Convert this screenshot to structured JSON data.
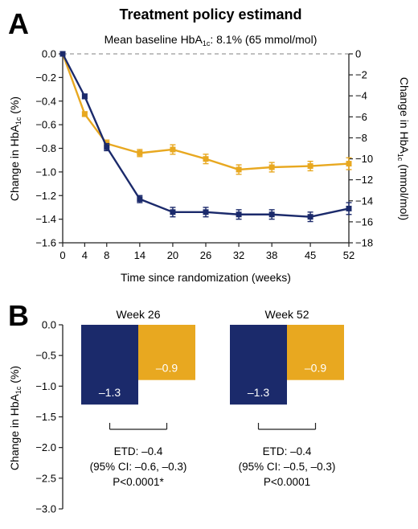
{
  "colors": {
    "navy": "#1b2a6b",
    "gold": "#e8a820",
    "axis": "#222222",
    "reference": "#9a9a9a"
  },
  "panel_a": {
    "letter": "A",
    "title": "Treatment policy estimand",
    "subtitle_prefix": "Mean baseline HbA",
    "subtitle_sub": "1c",
    "subtitle_suffix": ": 8.1% (65 mmol/mol)",
    "ylabel_prefix": "Change in HbA",
    "ylabel_sub": "1c",
    "ylabel_suffix": " (%)",
    "y2label_prefix": "Change in HbA",
    "y2label_sub": "1c",
    "y2label_suffix": " (mmol/mol)",
    "xlabel": "Time since randomization (weeks)"
  },
  "panel_b": {
    "letter": "B",
    "ylabel_prefix": "Change in HbA",
    "ylabel_sub": "1c",
    "ylabel_suffix": " (%)"
  },
  "chart_data": [
    {
      "type": "line",
      "x": [
        0,
        4,
        8,
        14,
        20,
        26,
        32,
        38,
        45,
        52
      ],
      "x_tick_labels": [
        "0",
        "4",
        "8",
        "14",
        "20",
        "26",
        "32",
        "38",
        "45",
        "52"
      ],
      "xlim": [
        0,
        52
      ],
      "ylim": [
        -1.6,
        0.0
      ],
      "y_ticks": [
        "0.0",
        "-0.2",
        "-0.4",
        "-0.6",
        "-0.8",
        "-1.0",
        "-1.2",
        "-1.4",
        "-1.6"
      ],
      "y2lim": [
        -18,
        0
      ],
      "y2_ticks": [
        "0",
        "-2",
        "-4",
        "-6",
        "-8",
        "-10",
        "-12",
        "-14",
        "-16",
        "-18"
      ],
      "reference_line_y": 0,
      "grid": false,
      "series": [
        {
          "color": "#1b2a6b",
          "marker": "square",
          "values": [
            0.0,
            -0.36,
            -0.79,
            -1.23,
            -1.34,
            -1.34,
            -1.36,
            -1.36,
            -1.38,
            -1.31
          ],
          "error": [
            0.0,
            0.02,
            0.03,
            0.03,
            0.04,
            0.04,
            0.04,
            0.04,
            0.04,
            0.05
          ]
        },
        {
          "color": "#e8a820",
          "marker": "square",
          "values": [
            0.0,
            -0.51,
            -0.76,
            -0.84,
            -0.81,
            -0.89,
            -0.98,
            -0.96,
            -0.95,
            -0.93
          ],
          "error": [
            0.0,
            0.02,
            0.03,
            0.03,
            0.04,
            0.04,
            0.04,
            0.04,
            0.04,
            0.05
          ]
        }
      ]
    },
    {
      "type": "bar",
      "ylim": [
        -3.0,
        0.0
      ],
      "y_ticks": [
        "0.0",
        "-0.5",
        "-1.0",
        "-1.5",
        "-2.0",
        "-2.5",
        "-3.0"
      ],
      "groups": [
        {
          "label": "Week 26",
          "bars": [
            {
              "value": -1.3,
              "label": "–1.3",
              "color": "#1b2a6b"
            },
            {
              "value": -0.9,
              "label": "–0.9",
              "color": "#e8a820"
            }
          ],
          "annotation": [
            "ETD: –0.4",
            "(95% CI: –0.6, –0.3)",
            "P<0.0001*"
          ]
        },
        {
          "label": "Week 52",
          "bars": [
            {
              "value": -1.3,
              "label": "–1.3",
              "color": "#1b2a6b"
            },
            {
              "value": -0.9,
              "label": "–0.9",
              "color": "#e8a820"
            }
          ],
          "annotation": [
            "ETD: –0.4",
            "(95% CI: –0.5, –0.3)",
            "P<0.0001"
          ]
        }
      ]
    }
  ]
}
